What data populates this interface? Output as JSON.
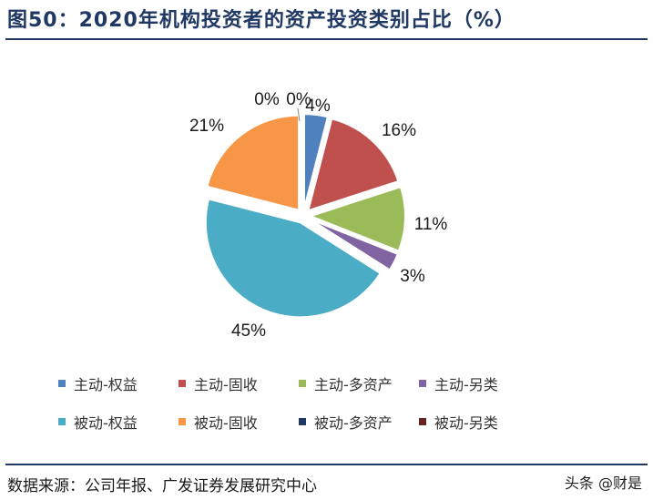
{
  "title": "图50：2020年机构投资者的资产投资类别占比（%）",
  "source": "数据来源：公司年报、广发证券发展研究中心",
  "watermark": "头条 @财是",
  "chart_data": {
    "type": "pie",
    "title": "图50：2020年机构投资者的资产投资类别占比（%）",
    "legend_position": "bottom",
    "slices": [
      {
        "name": "主动-权益",
        "value": 4,
        "label": "4%",
        "color": "#4e81bd"
      },
      {
        "name": "主动-固收",
        "value": 16,
        "label": "16%",
        "color": "#c0504e"
      },
      {
        "name": "主动-多资产",
        "value": 11,
        "label": "11%",
        "color": "#9bbb59"
      },
      {
        "name": "主动-另类",
        "value": 3,
        "label": "3%",
        "color": "#8064a2"
      },
      {
        "name": "被动-权益",
        "value": 45,
        "label": "45%",
        "color": "#4bacc6"
      },
      {
        "name": "被动-固收",
        "value": 21,
        "label": "21%",
        "color": "#f79646"
      },
      {
        "name": "被动-多资产",
        "value": 0,
        "label": "0%",
        "color": "#1f3864"
      },
      {
        "name": "被动-另类",
        "value": 0,
        "label": "0%",
        "color": "#632523"
      }
    ]
  }
}
